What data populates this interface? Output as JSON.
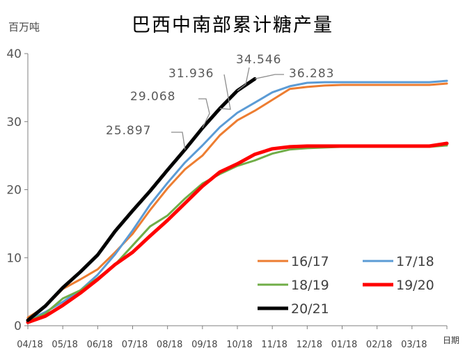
{
  "chart_data": {
    "type": "line",
    "title": "巴西中南部累计糖产量",
    "ylabel": "百万吨",
    "xlabel": "日期",
    "ylim": [
      0,
      40
    ],
    "y_ticks": [
      0,
      10,
      20,
      30,
      40
    ],
    "x_ticks": [
      "04/18",
      "05/18",
      "06/18",
      "07/18",
      "08/18",
      "09/18",
      "10/18",
      "11/18",
      "12/18",
      "01/18",
      "02/18",
      "03/18"
    ],
    "grid": false,
    "legend_position": "bottom-right",
    "series": [
      {
        "name": "16/17",
        "color": "#ED7D31",
        "x": [
          0,
          0.5,
          1,
          1.5,
          2,
          2.5,
          3,
          3.5,
          4,
          4.5,
          5,
          5.5,
          6,
          6.5,
          7,
          7.5,
          8,
          8.5,
          9,
          9.5,
          10,
          10.5,
          11,
          11.5,
          12
        ],
        "values": [
          1.2,
          2.8,
          5.4,
          6.8,
          8.3,
          10.8,
          13.5,
          17.0,
          20.2,
          23.0,
          25.0,
          28.0,
          30.2,
          31.6,
          33.2,
          34.8,
          35.1,
          35.3,
          35.4,
          35.4,
          35.4,
          35.4,
          35.4,
          35.4,
          35.6
        ]
      },
      {
        "name": "17/18",
        "color": "#5B9BD5",
        "x": [
          0,
          0.5,
          1,
          1.5,
          2,
          2.5,
          3,
          3.5,
          4,
          4.5,
          5,
          5.5,
          6,
          6.5,
          7,
          7.5,
          8,
          8.5,
          9,
          9.5,
          10,
          10.5,
          11,
          11.5,
          12
        ],
        "values": [
          0.8,
          2.0,
          3.5,
          5.2,
          7.5,
          10.5,
          14.0,
          17.8,
          21.0,
          24.0,
          26.5,
          29.2,
          31.3,
          32.8,
          34.3,
          35.2,
          35.7,
          35.8,
          35.8,
          35.8,
          35.8,
          35.8,
          35.8,
          35.8,
          36.0
        ]
      },
      {
        "name": "18/19",
        "color": "#70AD47",
        "x": [
          0,
          0.5,
          1,
          1.5,
          2,
          2.5,
          3,
          3.5,
          4,
          4.5,
          5,
          5.5,
          6,
          6.5,
          7,
          7.5,
          8,
          8.5,
          9,
          9.5,
          10,
          10.5,
          11,
          11.5,
          12
        ],
        "values": [
          0.6,
          1.8,
          4.0,
          5.2,
          7.0,
          9.0,
          11.8,
          14.6,
          16.2,
          18.7,
          20.9,
          22.3,
          23.5,
          24.3,
          25.3,
          25.9,
          26.1,
          26.2,
          26.3,
          26.3,
          26.3,
          26.3,
          26.3,
          26.3,
          26.5
        ]
      },
      {
        "name": "19/20",
        "color": "#FF0000",
        "x": [
          0,
          0.5,
          1,
          1.5,
          2,
          2.5,
          3,
          3.5,
          4,
          4.5,
          5,
          5.5,
          6,
          6.5,
          7,
          7.5,
          8,
          8.5,
          9,
          9.5,
          10,
          10.5,
          11,
          11.5,
          12
        ],
        "values": [
          0.5,
          1.4,
          3.0,
          4.8,
          6.8,
          9.0,
          10.8,
          13.2,
          15.5,
          18.0,
          20.5,
          22.6,
          23.8,
          25.2,
          26.0,
          26.3,
          26.4,
          26.4,
          26.4,
          26.4,
          26.4,
          26.4,
          26.4,
          26.4,
          26.8
        ]
      },
      {
        "name": "20/21",
        "color": "#000000",
        "x": [
          0,
          0.5,
          1,
          1.5,
          2,
          2.5,
          3,
          3.5,
          4,
          4.5,
          5,
          5.5,
          6,
          6.5
        ],
        "values": [
          0.8,
          2.9,
          5.6,
          7.9,
          10.4,
          13.9,
          16.9,
          19.8,
          22.9,
          25.9,
          29.068,
          31.936,
          34.546,
          36.283
        ]
      }
    ],
    "annotations": [
      {
        "text": "25.897",
        "series": "20/21",
        "x": 4.5,
        "y": 25.897
      },
      {
        "text": "29.068",
        "series": "20/21",
        "x": 5,
        "y": 29.068
      },
      {
        "text": "31.936",
        "series": "20/21",
        "x": 5.5,
        "y": 31.936
      },
      {
        "text": "34.546",
        "series": "20/21",
        "x": 6,
        "y": 34.546
      },
      {
        "text": "36.283",
        "series": "20/21",
        "x": 6.5,
        "y": 36.283
      }
    ]
  }
}
